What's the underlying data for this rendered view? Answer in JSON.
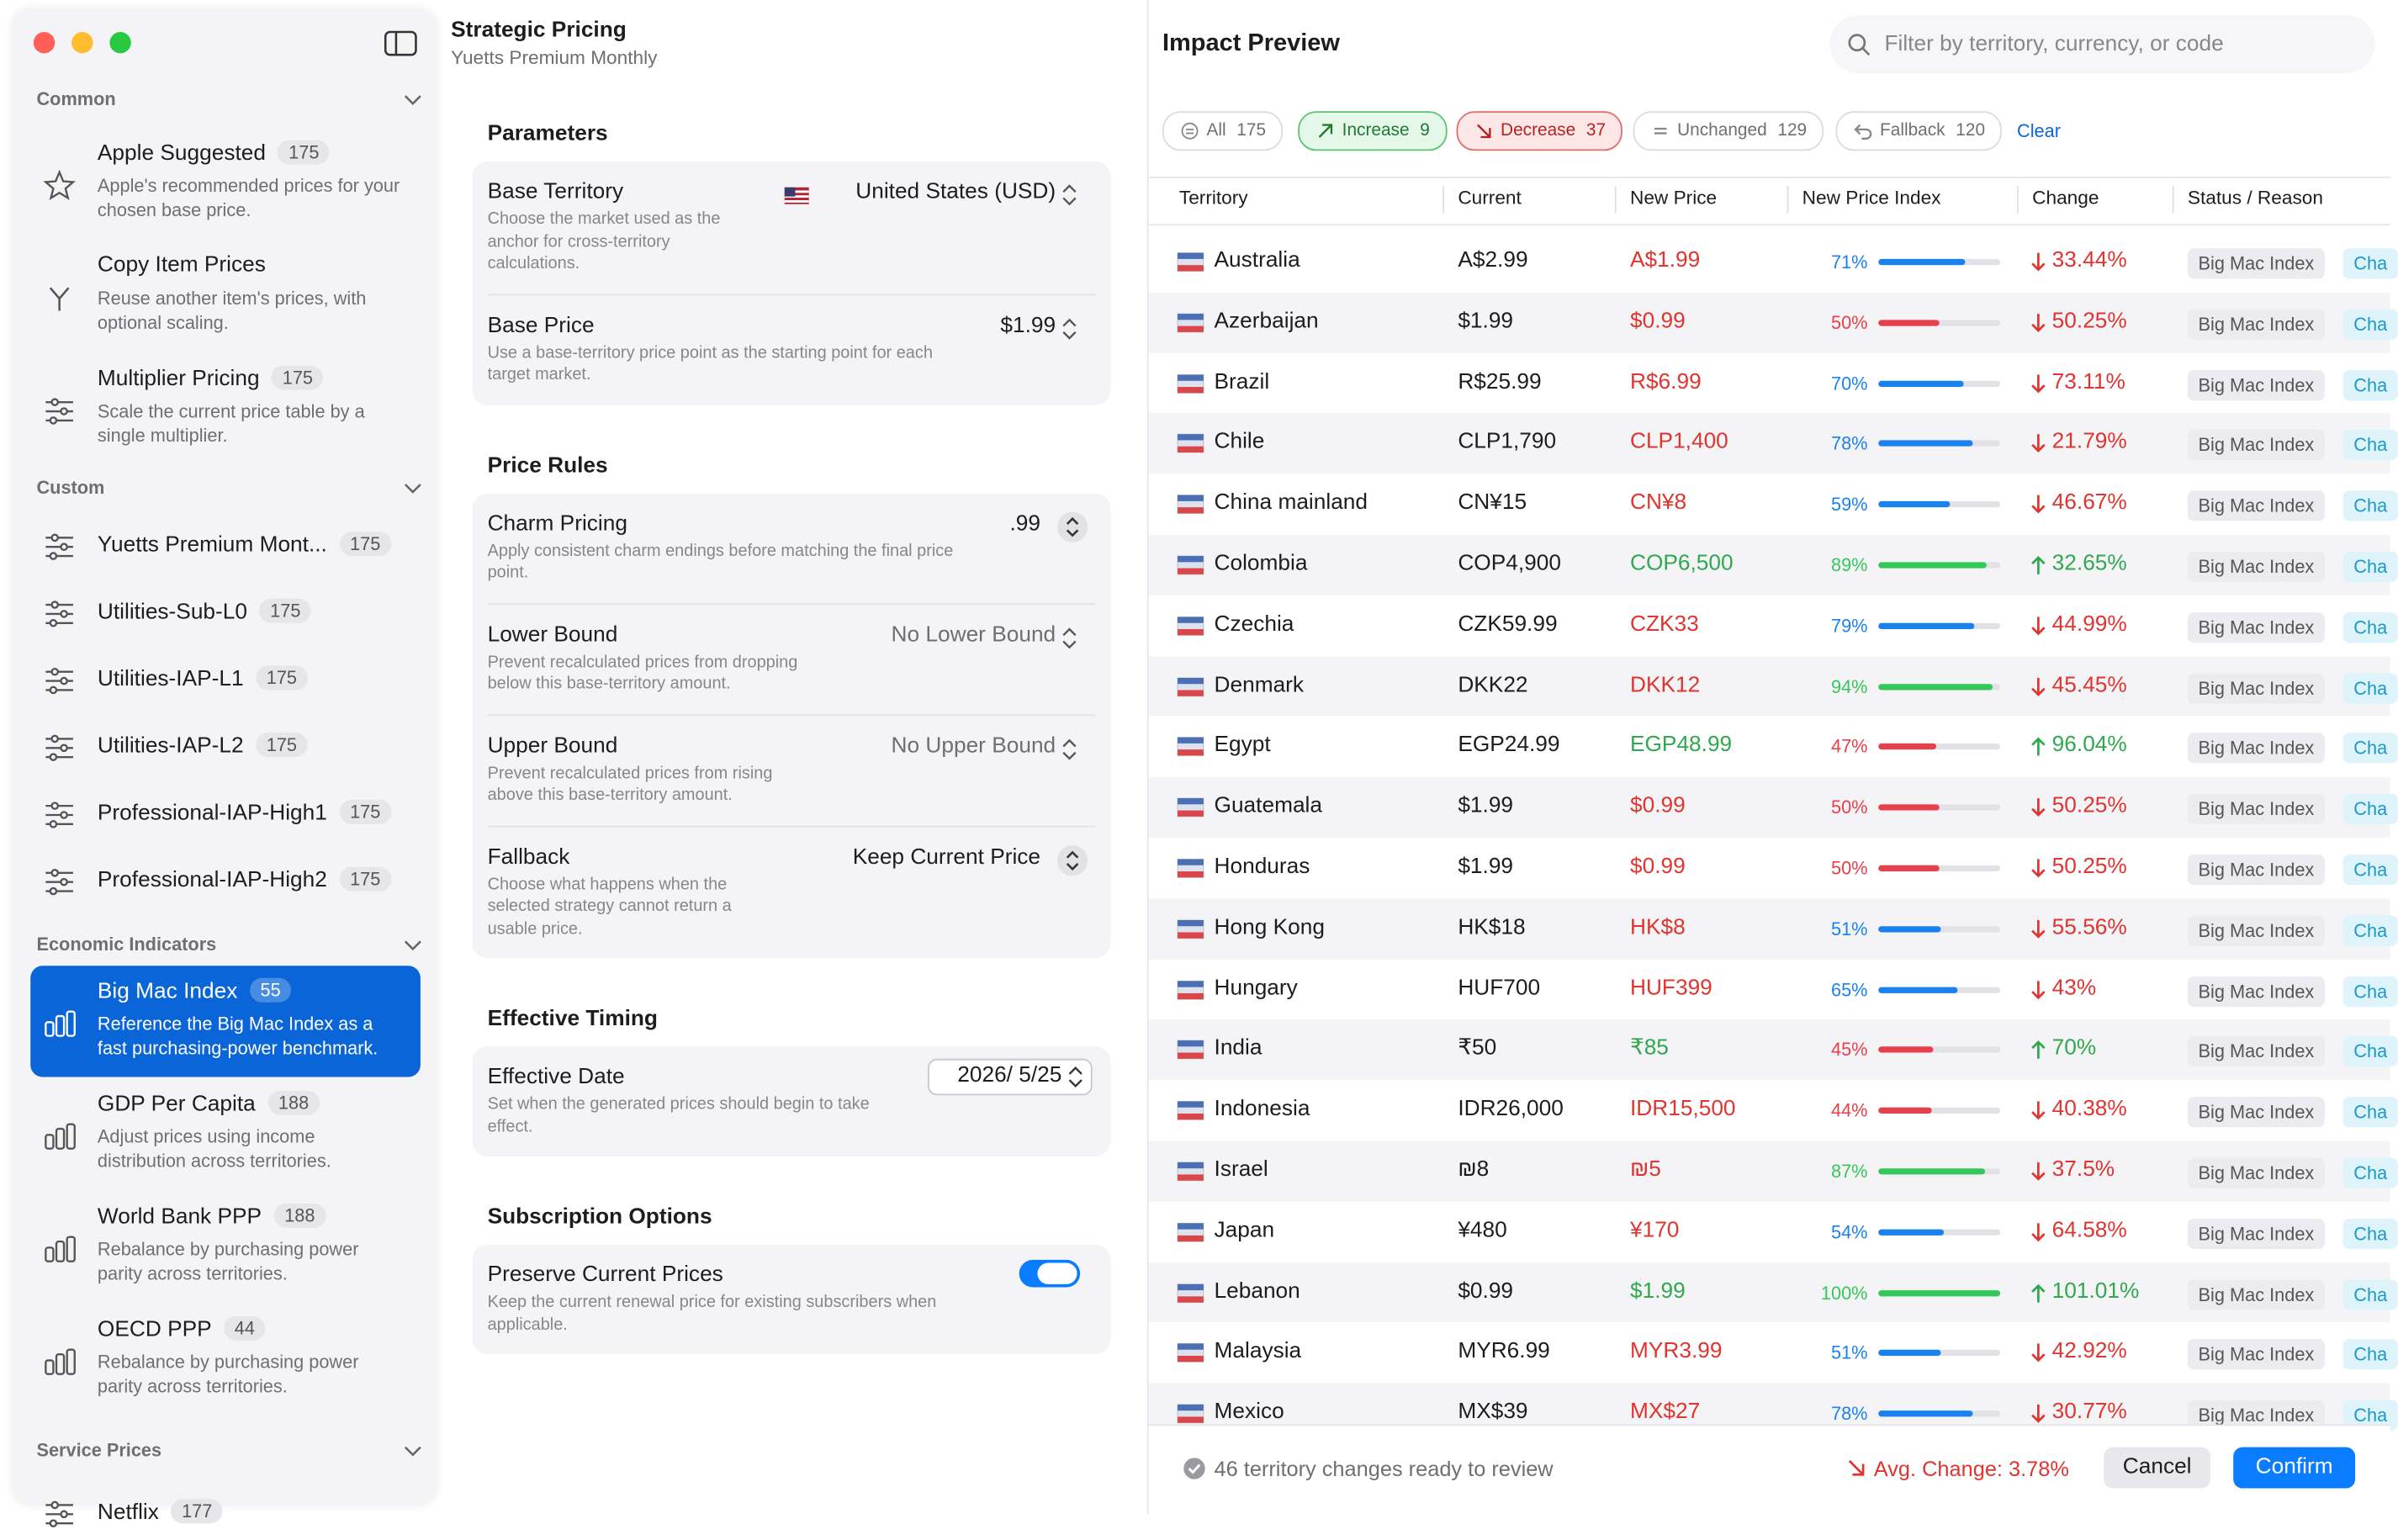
{
  "sidebar": {
    "sections": [
      {
        "title": "Common",
        "items": [
          {
            "name": "Apple Suggested",
            "count": "175",
            "desc": "Apple's recommended prices for your chosen base price."
          },
          {
            "name": "Copy Item Prices",
            "desc": "Reuse another item's prices, with optional scaling."
          },
          {
            "name": "Multiplier Pricing",
            "count": "175",
            "desc": "Scale the current price table by a single multiplier."
          }
        ]
      },
      {
        "title": "Custom",
        "items": [
          {
            "name": "Yuetts Premium Mont...",
            "count": "175"
          },
          {
            "name": "Utilities-Sub-L0",
            "count": "175"
          },
          {
            "name": "Utilities-IAP-L1",
            "count": "175"
          },
          {
            "name": "Utilities-IAP-L2",
            "count": "175"
          },
          {
            "name": "Professional-IAP-High1",
            "count": "175"
          },
          {
            "name": "Professional-IAP-High2",
            "count": "175"
          }
        ]
      },
      {
        "title": "Economic Indicators",
        "items": [
          {
            "name": "Big Mac Index",
            "count": "55",
            "desc": "Reference the Big Mac Index as a fast purchasing-power benchmark.",
            "selected": true
          },
          {
            "name": "GDP Per Capita",
            "count": "188",
            "desc": "Adjust prices using income distribution across territories."
          },
          {
            "name": "World Bank PPP",
            "count": "188",
            "desc": "Rebalance by purchasing power parity across territories."
          },
          {
            "name": "OECD PPP",
            "count": "44",
            "desc": "Rebalance by purchasing power parity across territories."
          }
        ]
      },
      {
        "title": "Service Prices",
        "items": [
          {
            "name": "Netflix",
            "count": "177"
          }
        ]
      }
    ]
  },
  "editor": {
    "title": "Strategic Pricing",
    "subtitle": "Yuetts Premium Monthly",
    "groups": [
      {
        "title": "Parameters",
        "rows": [
          {
            "label": "Base Territory",
            "desc": "Choose the market used as the anchor for cross-territory calculations.",
            "value": "United States (USD)",
            "control": "popup"
          },
          {
            "label": "Base Price",
            "desc": "Use a base-territory price point as the starting point for each target market.",
            "value": "$1.99",
            "control": "popup"
          }
        ]
      },
      {
        "title": "Price Rules",
        "rows": [
          {
            "label": "Charm Pricing",
            "desc": "Apply consistent charm endings before matching the final price point.",
            "value": ".99",
            "control": "stepper"
          },
          {
            "label": "Lower Bound",
            "desc": "Prevent recalculated prices from dropping below this base-territory amount.",
            "value": "No Lower Bound",
            "control": "popup",
            "placeholder": true
          },
          {
            "label": "Upper Bound",
            "desc": "Prevent recalculated prices from rising above this base-territory amount.",
            "value": "No Upper Bound",
            "control": "popup",
            "placeholder": true
          },
          {
            "label": "Fallback",
            "desc": "Choose what happens when the selected strategy cannot return a usable price.",
            "value": "Keep Current Price",
            "control": "stepper"
          }
        ]
      },
      {
        "title": "Effective Timing",
        "rows": [
          {
            "label": "Effective Date",
            "desc": "Set when the generated prices should begin to take effect.",
            "value": "2026/  5/25",
            "control": "date"
          }
        ]
      },
      {
        "title": "Subscription Options",
        "rows": [
          {
            "label": "Preserve Current Prices",
            "desc": "Keep the current renewal price for existing subscribers when applicable.",
            "control": "toggle",
            "on": true
          }
        ]
      }
    ]
  },
  "preview": {
    "title": "Impact Preview",
    "search": "Filter by territory, currency, or code",
    "filters": [
      {
        "label": "All",
        "count": "175",
        "style": "plain"
      },
      {
        "label": "Increase",
        "count": "9",
        "style": "green"
      },
      {
        "label": "Decrease",
        "count": "37",
        "style": "red"
      },
      {
        "label": "Unchanged",
        "count": "129",
        "style": "plain"
      },
      {
        "label": "Fallback",
        "count": "120",
        "style": "plain"
      }
    ],
    "clear": "Clear",
    "columns": [
      "Territory",
      "Current",
      "New Price",
      "New Price Index",
      "Change",
      "Status / Reason"
    ],
    "rows": [
      {
        "territory": "Australia",
        "current": "A$2.99",
        "new_price": "A$1.99",
        "index": "71%",
        "change": "33.44%",
        "direction": "down",
        "status": "Big Mac Index",
        "reason": "Cha"
      },
      {
        "territory": "Azerbaijan",
        "current": "$1.99",
        "new_price": "$0.99",
        "index": "50%",
        "change": "50.25%",
        "direction": "down",
        "status": "Big Mac Index",
        "reason": "Cha"
      },
      {
        "territory": "Brazil",
        "current": "R$25.99",
        "new_price": "R$6.99",
        "index": "70%",
        "change": "73.11%",
        "direction": "down",
        "status": "Big Mac Index",
        "reason": "Cha"
      },
      {
        "territory": "Chile",
        "current": "CLP1,790",
        "new_price": "CLP1,400",
        "index": "78%",
        "change": "21.79%",
        "direction": "down",
        "status": "Big Mac Index",
        "reason": "Cha"
      },
      {
        "territory": "China mainland",
        "current": "CN¥15",
        "new_price": "CN¥8",
        "index": "59%",
        "change": "46.67%",
        "direction": "down",
        "status": "Big Mac Index",
        "reason": "Cha"
      },
      {
        "territory": "Colombia",
        "current": "COP4,900",
        "new_price": "COP6,500",
        "index": "89%",
        "change": "32.65%",
        "direction": "up",
        "status": "Big Mac Index",
        "reason": "Cha"
      },
      {
        "territory": "Czechia",
        "current": "CZK59.99",
        "new_price": "CZK33",
        "index": "79%",
        "change": "44.99%",
        "direction": "down",
        "status": "Big Mac Index",
        "reason": "Cha"
      },
      {
        "territory": "Denmark",
        "current": "DKK22",
        "new_price": "DKK12",
        "index": "94%",
        "change": "45.45%",
        "direction": "down",
        "status": "Big Mac Index",
        "reason": "Cha"
      },
      {
        "territory": "Egypt",
        "current": "EGP24.99",
        "new_price": "EGP48.99",
        "index": "47%",
        "change": "96.04%",
        "direction": "up",
        "status": "Big Mac Index",
        "reason": "Cha"
      },
      {
        "territory": "Guatemala",
        "current": "$1.99",
        "new_price": "$0.99",
        "index": "50%",
        "change": "50.25%",
        "direction": "down",
        "status": "Big Mac Index",
        "reason": "Cha"
      },
      {
        "territory": "Honduras",
        "current": "$1.99",
        "new_price": "$0.99",
        "index": "50%",
        "change": "50.25%",
        "direction": "down",
        "status": "Big Mac Index",
        "reason": "Cha"
      },
      {
        "territory": "Hong Kong",
        "current": "HK$18",
        "new_price": "HK$8",
        "index": "51%",
        "change": "55.56%",
        "direction": "down",
        "status": "Big Mac Index",
        "reason": "Cha"
      },
      {
        "territory": "Hungary",
        "current": "HUF700",
        "new_price": "HUF399",
        "index": "65%",
        "change": "43%",
        "direction": "down",
        "status": "Big Mac Index",
        "reason": "Cha"
      },
      {
        "territory": "India",
        "current": "₹50",
        "new_price": "₹85",
        "index": "45%",
        "change": "70%",
        "direction": "up",
        "status": "Big Mac Index",
        "reason": "Cha"
      },
      {
        "territory": "Indonesia",
        "current": "IDR26,000",
        "new_price": "IDR15,500",
        "index": "44%",
        "change": "40.38%",
        "direction": "down",
        "status": "Big Mac Index",
        "reason": "Cha"
      },
      {
        "territory": "Israel",
        "current": "₪8",
        "new_price": "₪5",
        "index": "87%",
        "change": "37.5%",
        "direction": "down",
        "status": "Big Mac Index",
        "reason": "Cha"
      },
      {
        "territory": "Japan",
        "current": "¥480",
        "new_price": "¥170",
        "index": "54%",
        "change": "64.58%",
        "direction": "down",
        "status": "Big Mac Index",
        "reason": "Cha"
      },
      {
        "territory": "Lebanon",
        "current": "$0.99",
        "new_price": "$1.99",
        "index": "100%",
        "change": "101.01%",
        "direction": "up",
        "status": "Big Mac Index",
        "reason": "Cha"
      },
      {
        "territory": "Malaysia",
        "current": "MYR6.99",
        "new_price": "MYR3.99",
        "index": "51%",
        "change": "42.92%",
        "direction": "down",
        "status": "Big Mac Index",
        "reason": "Cha"
      },
      {
        "territory": "Mexico",
        "current": "MX$39",
        "new_price": "MX$27",
        "index": "78%",
        "change": "30.77%",
        "direction": "down",
        "status": "Big Mac Index",
        "reason": "Cha"
      }
    ],
    "footer": {
      "status": "46 territory changes ready to review",
      "avg": "Avg. Change: 3.78%",
      "cancel": "Cancel",
      "confirm": "Confirm"
    }
  }
}
